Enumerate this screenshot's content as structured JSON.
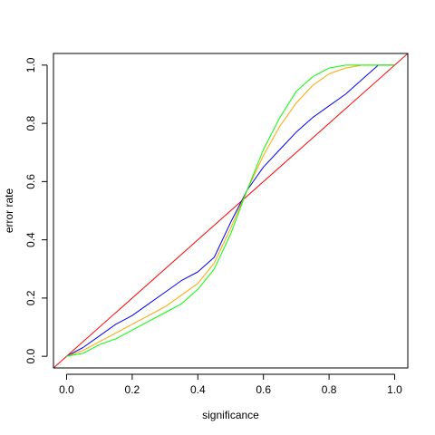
{
  "chart_data": {
    "type": "line",
    "title": "",
    "xlabel": "significance",
    "ylabel": "error rate",
    "xlim": [
      -0.04,
      1.04
    ],
    "ylim": [
      -0.04,
      1.04
    ],
    "x_ticks": [
      "0.0",
      "0.2",
      "0.4",
      "0.6",
      "0.8",
      "1.0"
    ],
    "y_ticks": [
      "0.0",
      "0.2",
      "0.4",
      "0.6",
      "0.8",
      "1.0"
    ],
    "grid": false,
    "legend": "none",
    "series": [
      {
        "color": "#ff0000",
        "x": [
          -0.04,
          1.04
        ],
        "y": [
          -0.04,
          1.04
        ]
      },
      {
        "color": "#0000ff",
        "x": [
          0.0,
          0.05,
          0.1,
          0.15,
          0.2,
          0.25,
          0.3,
          0.35,
          0.4,
          0.45,
          0.5,
          0.55,
          0.6,
          0.65,
          0.7,
          0.75,
          0.8,
          0.85,
          0.9,
          0.95,
          1.0
        ],
        "y": [
          0.0,
          0.03,
          0.07,
          0.11,
          0.14,
          0.18,
          0.22,
          0.26,
          0.29,
          0.34,
          0.46,
          0.57,
          0.65,
          0.71,
          0.77,
          0.82,
          0.86,
          0.9,
          0.95,
          1.0,
          1.0
        ]
      },
      {
        "color": "#ffa500",
        "x": [
          0.0,
          0.05,
          0.1,
          0.15,
          0.2,
          0.25,
          0.3,
          0.35,
          0.4,
          0.45,
          0.5,
          0.55,
          0.6,
          0.65,
          0.7,
          0.75,
          0.8,
          0.85,
          0.9,
          0.95,
          1.0
        ],
        "y": [
          0.0,
          0.02,
          0.05,
          0.08,
          0.11,
          0.14,
          0.17,
          0.21,
          0.25,
          0.32,
          0.44,
          0.57,
          0.69,
          0.79,
          0.87,
          0.93,
          0.97,
          0.99,
          1.0,
          1.0,
          1.0
        ]
      },
      {
        "color": "#00ff00",
        "x": [
          0.0,
          0.05,
          0.1,
          0.15,
          0.2,
          0.25,
          0.3,
          0.35,
          0.4,
          0.45,
          0.5,
          0.55,
          0.6,
          0.65,
          0.7,
          0.75,
          0.8,
          0.85,
          0.9,
          0.95,
          1.0
        ],
        "y": [
          0.0,
          0.01,
          0.04,
          0.06,
          0.09,
          0.12,
          0.15,
          0.18,
          0.23,
          0.3,
          0.42,
          0.57,
          0.71,
          0.82,
          0.91,
          0.96,
          0.99,
          1.0,
          1.0,
          1.0,
          1.0
        ]
      }
    ]
  }
}
